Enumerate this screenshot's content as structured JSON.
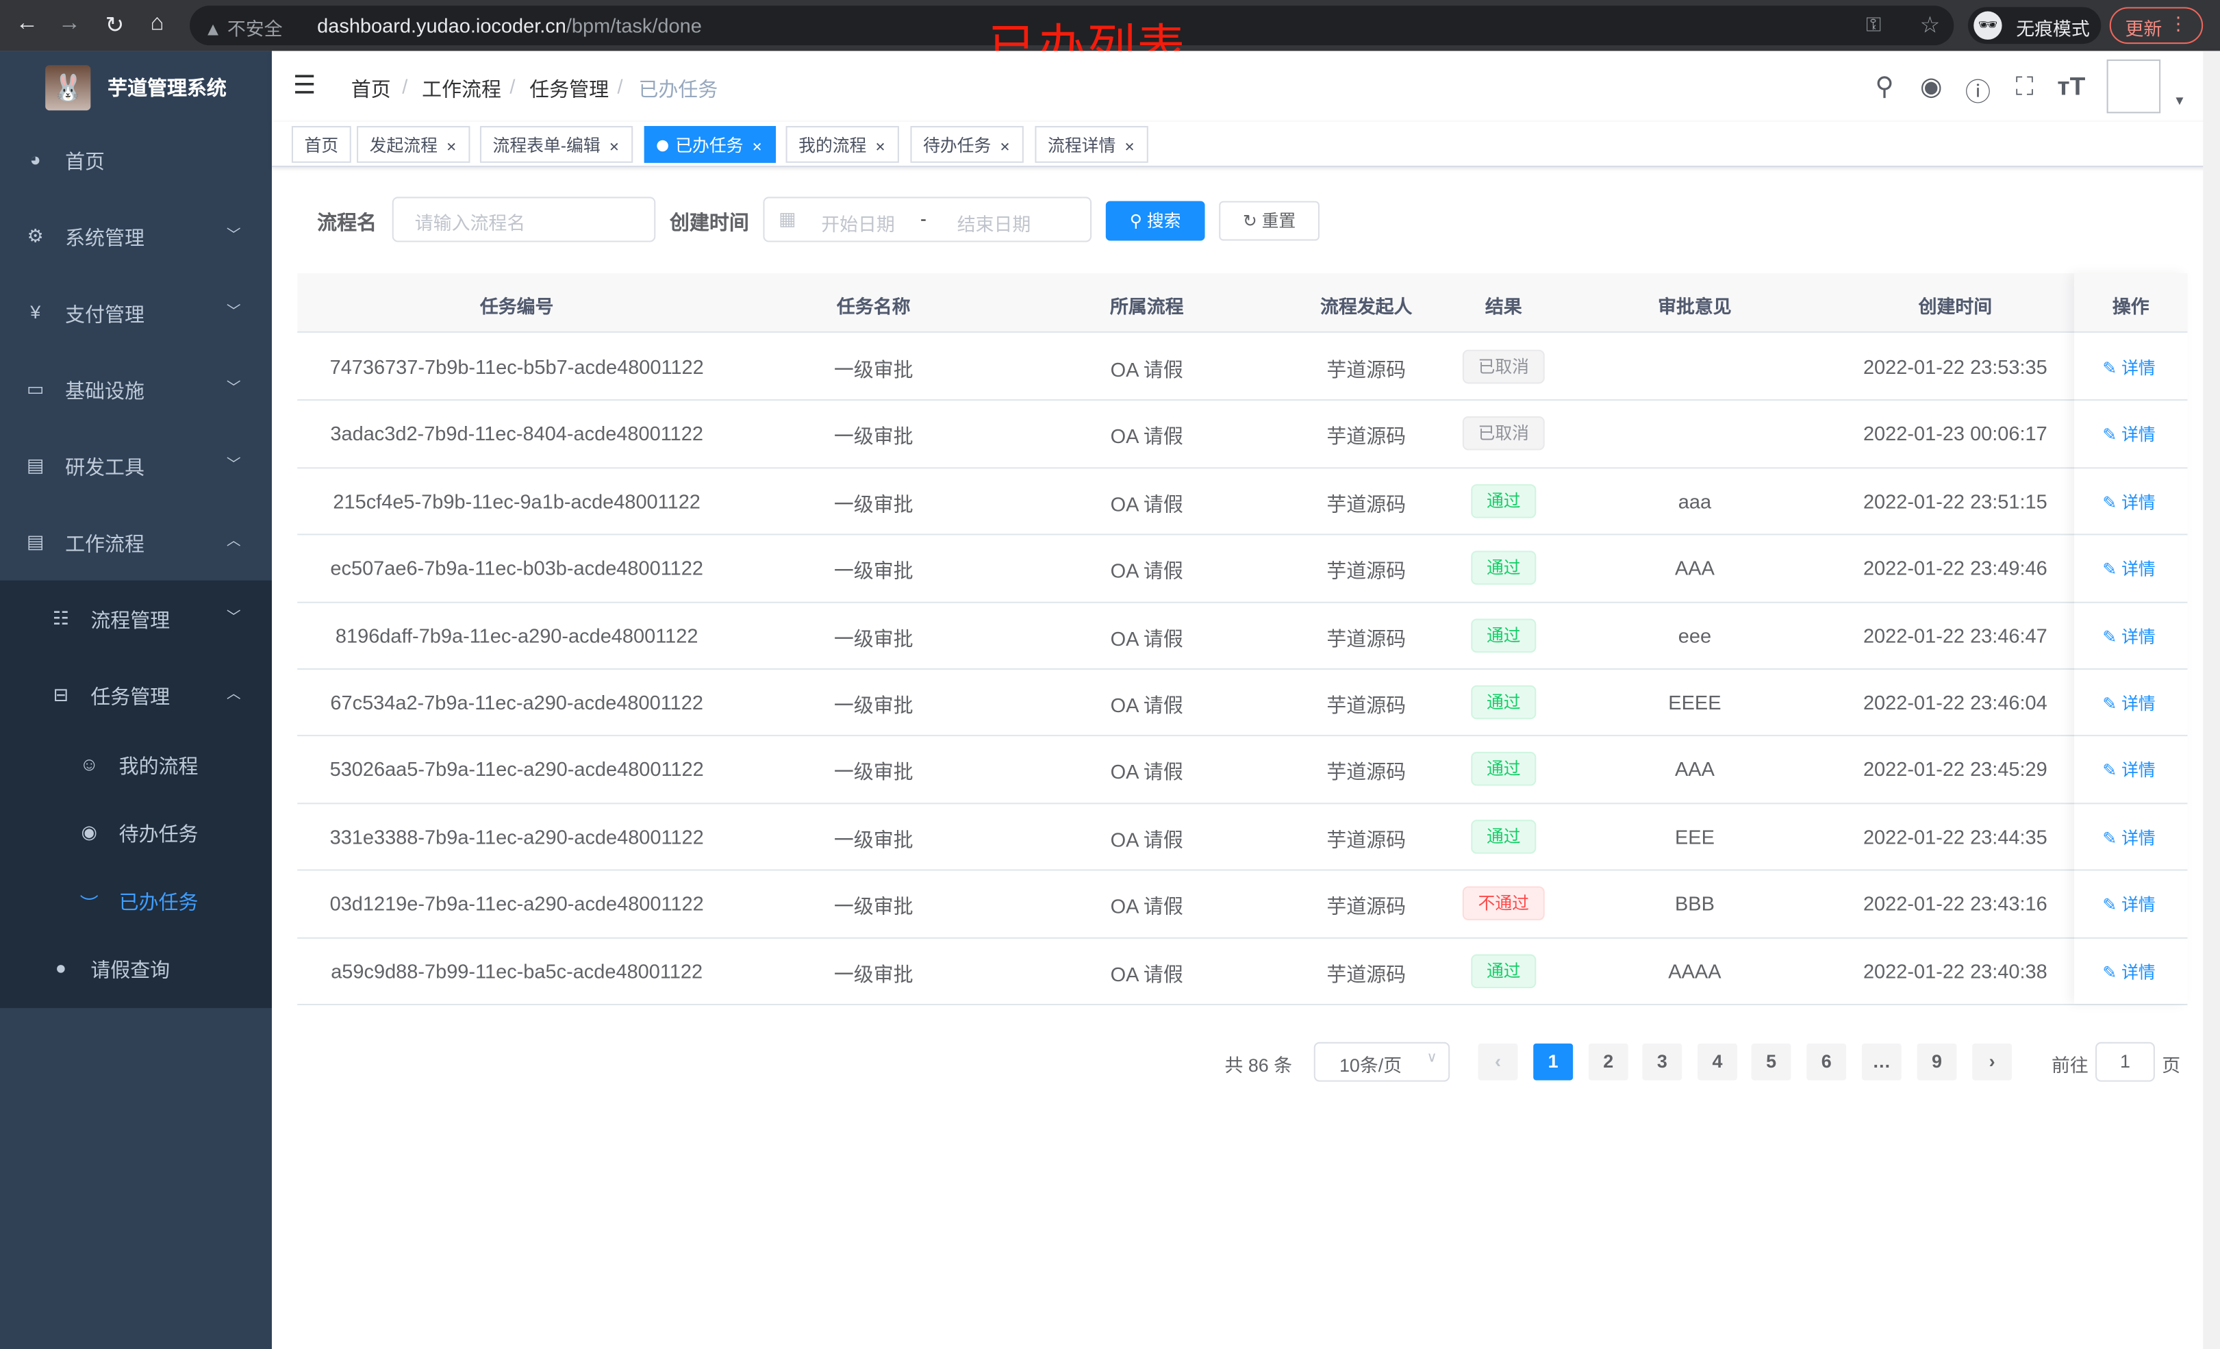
{
  "browser": {
    "insecure_label": "不安全",
    "url_host": "dashboard.yudao.iocoder.cn",
    "url_path": "/bpm/task/done",
    "incognito_label": "无痕模式",
    "update_label": "更新"
  },
  "annotation": "已办列表",
  "app": {
    "title": "芋道管理系统"
  },
  "sidebar": {
    "items": [
      {
        "label": "首页",
        "icon": "dashboard-icon"
      },
      {
        "label": "系统管理",
        "icon": "gear-icon"
      },
      {
        "label": "支付管理",
        "icon": "yen-icon"
      },
      {
        "label": "基础设施",
        "icon": "monitor-icon"
      },
      {
        "label": "研发工具",
        "icon": "toolbox-icon"
      },
      {
        "label": "工作流程",
        "icon": "toolbox-icon"
      },
      {
        "label": "流程管理",
        "icon": "list-icon"
      },
      {
        "label": "任务管理",
        "icon": "tree-icon"
      },
      {
        "label": "我的流程",
        "icon": "people-icon"
      },
      {
        "label": "待办任务",
        "icon": "eye-icon"
      },
      {
        "label": "已办任务",
        "icon": "eye-closed-icon"
      },
      {
        "label": "请假查询",
        "icon": "user-icon"
      }
    ]
  },
  "breadcrumb": [
    "首页",
    "工作流程",
    "任务管理",
    "已办任务"
  ],
  "tabs": [
    {
      "label": "首页",
      "closable": false
    },
    {
      "label": "发起流程",
      "closable": true
    },
    {
      "label": "流程表单-编辑",
      "closable": true
    },
    {
      "label": "已办任务",
      "closable": true,
      "active": true
    },
    {
      "label": "我的流程",
      "closable": true
    },
    {
      "label": "待办任务",
      "closable": true
    },
    {
      "label": "流程详情",
      "closable": true
    }
  ],
  "search": {
    "name_label": "流程名",
    "name_placeholder": "请输入流程名",
    "time_label": "创建时间",
    "start_placeholder": "开始日期",
    "range_sep": "-",
    "end_placeholder": "结束日期",
    "search_label": "搜索",
    "reset_label": "重置"
  },
  "table": {
    "columns": [
      "任务编号",
      "任务名称",
      "所属流程",
      "流程发起人",
      "结果",
      "审批意见",
      "创建时间",
      "操作"
    ],
    "action_label": "详情",
    "rows": [
      {
        "id": "74736737-7b9b-11ec-b5b7-acde48001122",
        "name": "一级审批",
        "process": "OA 请假",
        "starter": "芋道源码",
        "result": "已取消",
        "status": "info",
        "comment": "",
        "time": "2022-01-22 23:53:35"
      },
      {
        "id": "3adac3d2-7b9d-11ec-8404-acde48001122",
        "name": "一级审批",
        "process": "OA 请假",
        "starter": "芋道源码",
        "result": "已取消",
        "status": "info",
        "comment": "",
        "time": "2022-01-23 00:06:17"
      },
      {
        "id": "215cf4e5-7b9b-11ec-9a1b-acde48001122",
        "name": "一级审批",
        "process": "OA 请假",
        "starter": "芋道源码",
        "result": "通过",
        "status": "success",
        "comment": "aaa",
        "time": "2022-01-22 23:51:15"
      },
      {
        "id": "ec507ae6-7b9a-11ec-b03b-acde48001122",
        "name": "一级审批",
        "process": "OA 请假",
        "starter": "芋道源码",
        "result": "通过",
        "status": "success",
        "comment": "AAA",
        "time": "2022-01-22 23:49:46"
      },
      {
        "id": "8196daff-7b9a-11ec-a290-acde48001122",
        "name": "一级审批",
        "process": "OA 请假",
        "starter": "芋道源码",
        "result": "通过",
        "status": "success",
        "comment": "eee",
        "time": "2022-01-22 23:46:47"
      },
      {
        "id": "67c534a2-7b9a-11ec-a290-acde48001122",
        "name": "一级审批",
        "process": "OA 请假",
        "starter": "芋道源码",
        "result": "通过",
        "status": "success",
        "comment": "EEEE",
        "time": "2022-01-22 23:46:04"
      },
      {
        "id": "53026aa5-7b9a-11ec-a290-acde48001122",
        "name": "一级审批",
        "process": "OA 请假",
        "starter": "芋道源码",
        "result": "通过",
        "status": "success",
        "comment": "AAA",
        "time": "2022-01-22 23:45:29"
      },
      {
        "id": "331e3388-7b9a-11ec-a290-acde48001122",
        "name": "一级审批",
        "process": "OA 请假",
        "starter": "芋道源码",
        "result": "通过",
        "status": "success",
        "comment": "EEE",
        "time": "2022-01-22 23:44:35"
      },
      {
        "id": "03d1219e-7b9a-11ec-a290-acde48001122",
        "name": "一级审批",
        "process": "OA 请假",
        "starter": "芋道源码",
        "result": "不通过",
        "status": "danger",
        "comment": "BBB",
        "time": "2022-01-22 23:43:16"
      },
      {
        "id": "a59c9d88-7b99-11ec-ba5c-acde48001122",
        "name": "一级审批",
        "process": "OA 请假",
        "starter": "芋道源码",
        "result": "通过",
        "status": "success",
        "comment": "AAAA",
        "time": "2022-01-22 23:40:38"
      }
    ]
  },
  "pagination": {
    "total_label": "共 86 条",
    "page_size": "10条/页",
    "pages": [
      "1",
      "2",
      "3",
      "4",
      "5",
      "6",
      "…",
      "9"
    ],
    "current": "1",
    "goto_label": "前往",
    "goto_value": "1",
    "page_suffix": "页"
  },
  "colors": {
    "primary": "#1890ff",
    "sidebar_bg": "#304156",
    "sidebar_sub_bg": "#1f2d3d",
    "success": "#13ce66",
    "danger": "#ff4949",
    "annotation": "#f41c0c"
  }
}
